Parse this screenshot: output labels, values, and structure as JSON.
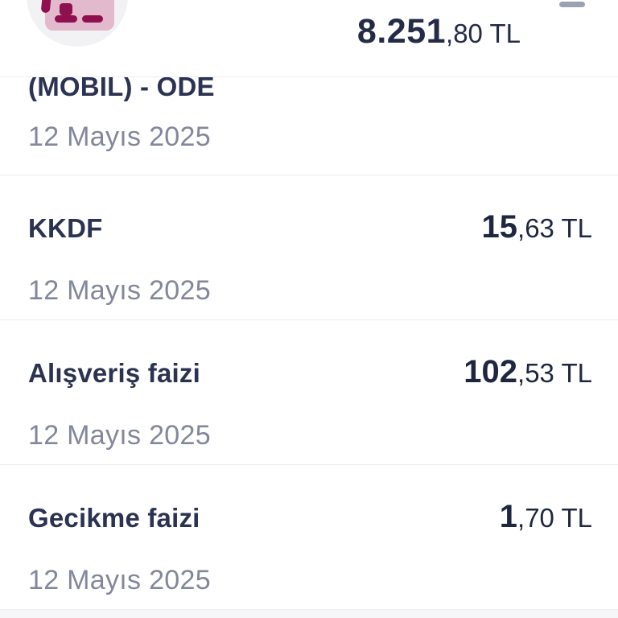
{
  "header": {
    "balance_int": "8.251",
    "balance_frac": ",80 TL",
    "avatar_icon": "credit-card-icon"
  },
  "transactions": [
    {
      "title": "(MOBİL) - ÖDE",
      "date": "12 Mayıs 2025",
      "amount_int": "",
      "amount_frac": ""
    },
    {
      "title": "KKDF",
      "date": "12 Mayıs 2025",
      "amount_int": "15",
      "amount_frac": ",63 TL"
    },
    {
      "title": "Alışveriş faizi",
      "date": "12 Mayıs 2025",
      "amount_int": "102",
      "amount_frac": ",53 TL"
    },
    {
      "title": "Gecikme faizi",
      "date": "12 Mayıs 2025",
      "amount_int": "1",
      "amount_frac": ",70 TL"
    }
  ],
  "colors": {
    "title_navy": "#2b3252",
    "amount_dark": "#1f2740",
    "date_gray": "#82879b",
    "divider": "#ebebee",
    "icon_pink": "#e3b9ce",
    "icon_magenta": "#8e104e",
    "avatar_bg": "#f2f2f4",
    "menu_dash_gray": "#9aa1b2"
  }
}
